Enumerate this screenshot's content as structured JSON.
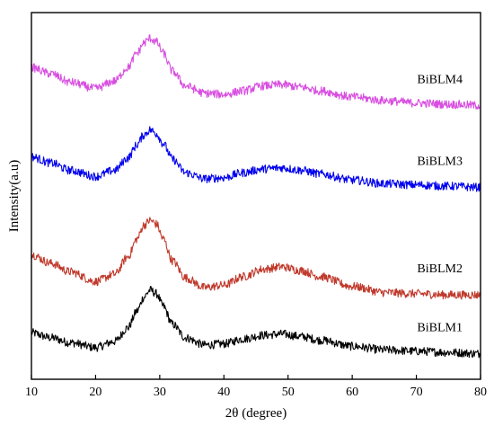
{
  "chart_data": {
    "type": "line",
    "title": "",
    "xlabel": "2θ (degree)",
    "ylabel": "Intensity(a.u)",
    "xlim": [
      10,
      80
    ],
    "xticks": [
      10,
      20,
      30,
      40,
      50,
      60,
      70,
      80
    ],
    "y_ticks_shown": false,
    "grid": false,
    "legend": "inline labels at right of each trace",
    "series": [
      {
        "name": "BiBLM1",
        "color": "#000000",
        "points": [
          [
            10,
            -0.62
          ],
          [
            13,
            -0.66
          ],
          [
            16,
            -0.7
          ],
          [
            20,
            -0.74
          ],
          [
            23,
            -0.69
          ],
          [
            25,
            -0.58
          ],
          [
            26.5,
            -0.44
          ],
          [
            27.5,
            -0.33
          ],
          [
            28.5,
            -0.27
          ],
          [
            29.5,
            -0.3
          ],
          [
            30.5,
            -0.4
          ],
          [
            32,
            -0.55
          ],
          [
            34,
            -0.66
          ],
          [
            37,
            -0.72
          ],
          [
            40,
            -0.71
          ],
          [
            43,
            -0.67
          ],
          [
            46,
            -0.64
          ],
          [
            49,
            -0.63
          ],
          [
            52,
            -0.65
          ],
          [
            55,
            -0.68
          ],
          [
            60,
            -0.73
          ],
          [
            65,
            -0.76
          ],
          [
            70,
            -0.77
          ],
          [
            75,
            -0.78
          ],
          [
            80,
            -0.79
          ]
        ]
      },
      {
        "name": "BiBLM2",
        "color": "#c0392b",
        "points": [
          [
            10,
            0.02
          ],
          [
            13,
            -0.05
          ],
          [
            16,
            -0.12
          ],
          [
            20,
            -0.2
          ],
          [
            23,
            -0.14
          ],
          [
            25,
            0.0
          ],
          [
            26.5,
            0.15
          ],
          [
            27.5,
            0.26
          ],
          [
            28.5,
            0.3
          ],
          [
            29.5,
            0.27
          ],
          [
            30.5,
            0.15
          ],
          [
            32,
            -0.03
          ],
          [
            34,
            -0.17
          ],
          [
            37,
            -0.25
          ],
          [
            40,
            -0.23
          ],
          [
            43,
            -0.16
          ],
          [
            46,
            -0.1
          ],
          [
            49,
            -0.08
          ],
          [
            52,
            -0.11
          ],
          [
            55,
            -0.16
          ],
          [
            60,
            -0.24
          ],
          [
            65,
            -0.29
          ],
          [
            70,
            -0.3
          ],
          [
            75,
            -0.31
          ],
          [
            80,
            -0.31
          ]
        ]
      },
      {
        "name": "BiBLM3",
        "color": "#0000ee",
        "points": [
          [
            10,
            0.82
          ],
          [
            13,
            0.77
          ],
          [
            16,
            0.71
          ],
          [
            20,
            0.66
          ],
          [
            23,
            0.71
          ],
          [
            25,
            0.81
          ],
          [
            26.5,
            0.92
          ],
          [
            27.5,
            1.0
          ],
          [
            28.5,
            1.04
          ],
          [
            29.5,
            1.01
          ],
          [
            30.5,
            0.93
          ],
          [
            32,
            0.8
          ],
          [
            34,
            0.69
          ],
          [
            37,
            0.64
          ],
          [
            40,
            0.65
          ],
          [
            43,
            0.69
          ],
          [
            46,
            0.72
          ],
          [
            49,
            0.73
          ],
          [
            52,
            0.71
          ],
          [
            55,
            0.68
          ],
          [
            60,
            0.63
          ],
          [
            65,
            0.6
          ],
          [
            70,
            0.59
          ],
          [
            75,
            0.58
          ],
          [
            80,
            0.57
          ]
        ]
      },
      {
        "name": "BiBLM4",
        "color": "#d84fe0",
        "points": [
          [
            10,
            1.55
          ],
          [
            13,
            1.5
          ],
          [
            16,
            1.43
          ],
          [
            20,
            1.38
          ],
          [
            23,
            1.44
          ],
          [
            25,
            1.55
          ],
          [
            26.5,
            1.67
          ],
          [
            27.5,
            1.75
          ],
          [
            28.5,
            1.79
          ],
          [
            29.5,
            1.76
          ],
          [
            30.5,
            1.67
          ],
          [
            32,
            1.52
          ],
          [
            34,
            1.4
          ],
          [
            37,
            1.34
          ],
          [
            40,
            1.33
          ],
          [
            43,
            1.36
          ],
          [
            46,
            1.4
          ],
          [
            49,
            1.41
          ],
          [
            52,
            1.39
          ],
          [
            55,
            1.36
          ],
          [
            60,
            1.31
          ],
          [
            65,
            1.28
          ],
          [
            70,
            1.26
          ],
          [
            75,
            1.25
          ],
          [
            80,
            1.24
          ]
        ]
      }
    ]
  }
}
